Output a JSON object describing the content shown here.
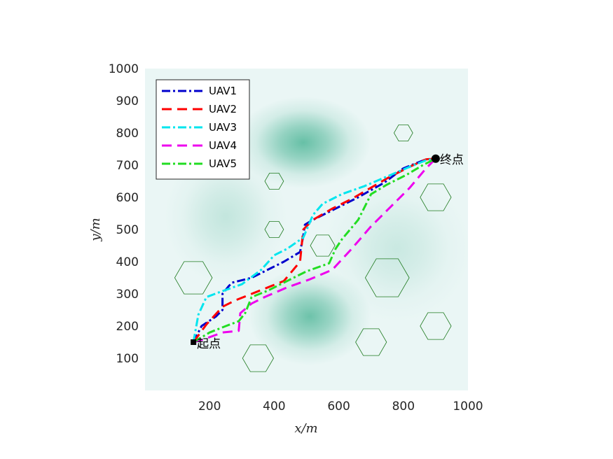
{
  "chart_data": {
    "type": "line",
    "xlabel": "x/m",
    "ylabel": "y/m",
    "xlim": [
      0,
      1000
    ],
    "ylim": [
      0,
      1000
    ],
    "xticks": [
      200,
      400,
      600,
      800,
      1000
    ],
    "yticks": [
      100,
      200,
      300,
      400,
      500,
      600,
      700,
      800,
      900,
      1000
    ],
    "grid": false,
    "legend_position": "top-left",
    "background": {
      "base_color": "#eaf6f5",
      "peak_color": "#4fb698",
      "peaks": [
        {
          "x": 490,
          "y": 770,
          "sx": 110,
          "sy": 75,
          "a": 1.0
        },
        {
          "x": 510,
          "y": 230,
          "sx": 100,
          "sy": 80,
          "a": 0.95
        },
        {
          "x": 250,
          "y": 540,
          "sx": 100,
          "sy": 110,
          "a": 0.3
        },
        {
          "x": 780,
          "y": 440,
          "sx": 120,
          "sy": 120,
          "a": 0.25
        }
      ]
    },
    "obstacles": [
      {
        "x": 150,
        "y": 350,
        "r": 58
      },
      {
        "x": 400,
        "y": 650,
        "r": 29
      },
      {
        "x": 400,
        "y": 500,
        "r": 29
      },
      {
        "x": 550,
        "y": 450,
        "r": 38
      },
      {
        "x": 350,
        "y": 100,
        "r": 48
      },
      {
        "x": 700,
        "y": 150,
        "r": 48
      },
      {
        "x": 750,
        "y": 350,
        "r": 68
      },
      {
        "x": 800,
        "y": 800,
        "r": 29
      },
      {
        "x": 900,
        "y": 600,
        "r": 48
      },
      {
        "x": 900,
        "y": 200,
        "r": 48
      }
    ],
    "obstacle_color": "#1f7a1f",
    "start": {
      "x": 150,
      "y": 150,
      "label": "起点"
    },
    "end": {
      "x": 900,
      "y": 720,
      "label": "终点"
    },
    "series": [
      {
        "name": "UAV1",
        "color": "#0000cd",
        "dash": "12 4 3 4",
        "x": [
          150,
          175,
          220,
          240,
          240,
          260,
          270,
          330,
          430,
          480,
          490,
          495,
          520,
          570,
          660,
          740,
          800,
          870,
          900
        ],
        "y": [
          150,
          200,
          230,
          250,
          300,
          325,
          335,
          350,
          400,
          430,
          480,
          515,
          530,
          555,
          600,
          645,
          690,
          718,
          720
        ]
      },
      {
        "name": "UAV2",
        "color": "#ff0000",
        "dash": "14 8",
        "x": [
          150,
          190,
          240,
          280,
          330,
          380,
          430,
          480,
          490,
          520,
          580,
          640,
          700,
          760,
          820,
          870,
          900
        ],
        "y": [
          150,
          205,
          260,
          280,
          300,
          320,
          340,
          400,
          500,
          530,
          565,
          595,
          630,
          665,
          695,
          718,
          720
        ]
      },
      {
        "name": "UAV3",
        "color": "#00e5ee",
        "dash": "12 4 3 4",
        "x": [
          150,
          165,
          190,
          230,
          300,
          360,
          400,
          440,
          490,
          520,
          550,
          610,
          680,
          750,
          820,
          870,
          900
        ],
        "y": [
          150,
          235,
          290,
          305,
          330,
          375,
          420,
          440,
          475,
          545,
          580,
          610,
          635,
          665,
          695,
          715,
          720
        ]
      },
      {
        "name": "UAV4",
        "color": "#ee00ee",
        "dash": "14 8",
        "x": [
          150,
          185,
          240,
          290,
          295,
          330,
          370,
          440,
          510,
          580,
          640,
          700,
          760,
          820,
          870,
          900
        ],
        "y": [
          150,
          160,
          180,
          185,
          240,
          270,
          290,
          320,
          345,
          375,
          440,
          510,
          570,
          630,
          690,
          720
        ]
      },
      {
        "name": "UAV5",
        "color": "#22dd22",
        "dash": "12 4 3 4",
        "x": [
          150,
          200,
          250,
          290,
          310,
          330,
          380,
          440,
          500,
          570,
          590,
          610,
          660,
          700,
          750,
          810,
          860,
          900
        ],
        "y": [
          150,
          180,
          200,
          215,
          240,
          290,
          310,
          340,
          370,
          395,
          440,
          470,
          530,
          610,
          640,
          670,
          700,
          720
        ]
      }
    ]
  }
}
